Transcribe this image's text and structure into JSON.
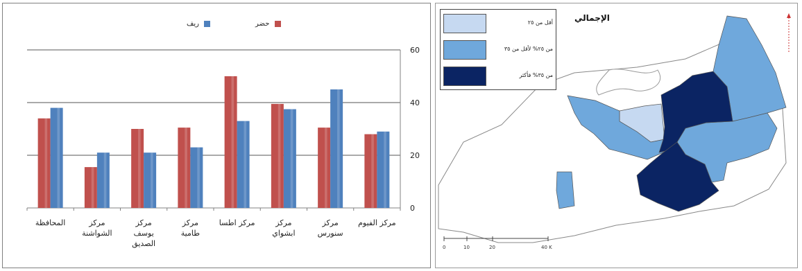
{
  "chart_data": {
    "type": "bar",
    "categories": [
      "مركز الفيوم",
      "مركز سنورس",
      "مركز ابشواي",
      "مركز اطسا",
      "مركز طامية",
      "مركز يوسف الصديق",
      "مركز الشواشنة",
      "المحافظة"
    ],
    "category_lines": [
      [
        "مركز الفيوم"
      ],
      [
        "مركز",
        "سنورس"
      ],
      [
        "مركز",
        "ابشواي"
      ],
      [
        "مركز اطسا"
      ],
      [
        "مركز",
        "طامية"
      ],
      [
        "مركز",
        "يوسف",
        "الصديق"
      ],
      [
        "مركز",
        "الشواشنة"
      ],
      [
        "المحافظة"
      ]
    ],
    "series": [
      {
        "name": "حضر",
        "values": [
          28,
          30.5,
          39.5,
          50,
          30.5,
          30,
          15.5,
          34
        ],
        "color": "#c0504d"
      },
      {
        "name": "ريف",
        "values": [
          29,
          45,
          37.5,
          33,
          23,
          21,
          21,
          38
        ],
        "color": "#4f81bd"
      }
    ],
    "y_ticks": [
      0,
      20,
      40,
      60
    ],
    "ylim": [
      0,
      60
    ],
    "y_axis_position": "right",
    "category_order": "right-to-left",
    "grid": true,
    "legend_position": "top"
  },
  "map": {
    "title": "الإجمالي",
    "legend": [
      {
        "label": "أقل من ٢٥",
        "color": "#c6d9f1"
      },
      {
        "label": "من ٢٥% لأقل من ٣٥",
        "color": "#6fa8dc"
      },
      {
        "label": "من ٣٥% فأكثر",
        "color": "#0b2463"
      }
    ],
    "scale_labels": [
      "0",
      "10",
      "20",
      "40 K"
    ]
  }
}
